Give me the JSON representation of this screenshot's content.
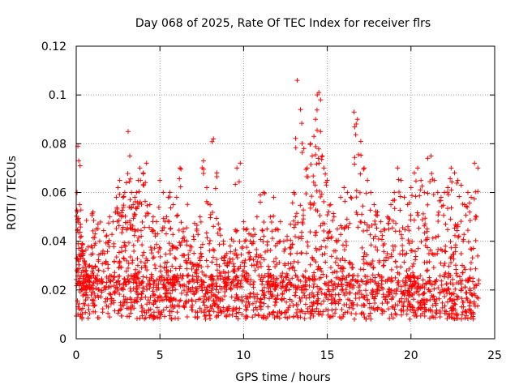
{
  "chart_data": {
    "type": "scatter",
    "title": "Day 068 of 2025, Rate Of TEC Index for receiver flrs",
    "xlabel": "GPS time / hours",
    "ylabel": "ROTI / TECUs",
    "xlim": [
      0,
      25
    ],
    "ylim": [
      0,
      0.12
    ],
    "xticks": [
      0,
      5,
      10,
      15,
      20,
      25
    ],
    "xtick_labels": [
      "0",
      "5",
      "10",
      "15",
      "20",
      "25"
    ],
    "yticks": [
      0,
      0.02,
      0.04,
      0.06,
      0.08,
      0.1,
      0.12
    ],
    "ytick_labels": [
      "0",
      "0.02",
      "0.04",
      "0.06",
      "0.08",
      "0.1",
      "0.12"
    ],
    "grid": true,
    "marker": "+",
    "color": "#ff0000",
    "series": [
      {
        "name": "ROTI",
        "x": [
          0.05,
          0.1,
          0.15,
          0.2,
          0.25,
          0.3,
          0.35,
          0.4,
          0.5,
          0.6,
          0.7,
          0.8,
          0.9,
          1.0,
          1.2,
          1.4,
          1.6,
          1.8,
          2.0,
          2.2,
          2.4,
          2.5,
          2.6,
          2.7,
          2.8,
          2.9,
          3.0,
          3.1,
          3.2,
          3.3,
          3.4,
          3.5,
          3.6,
          3.7,
          3.8,
          4.0,
          4.2,
          4.4,
          4.6,
          4.8,
          5.0,
          5.2,
          5.4,
          5.5,
          5.6,
          5.8,
          6.0,
          6.2,
          6.4,
          6.6,
          6.8,
          7.0,
          7.2,
          7.4,
          7.6,
          7.8,
          8.0,
          8.2,
          8.4,
          8.6,
          8.8,
          9.0,
          9.2,
          9.4,
          9.6,
          9.8,
          10.0,
          10.2,
          10.4,
          10.6,
          10.8,
          11.0,
          11.2,
          11.4,
          11.6,
          11.8,
          12.0,
          12.2,
          12.4,
          12.6,
          12.8,
          13.0,
          13.2,
          13.4,
          13.6,
          13.8,
          14.0,
          14.1,
          14.2,
          14.3,
          14.4,
          14.5,
          14.6,
          14.7,
          14.8,
          15.0,
          15.2,
          15.4,
          15.6,
          15.8,
          16.0,
          16.2,
          16.4,
          16.6,
          16.8,
          17.0,
          17.2,
          17.4,
          17.6,
          17.8,
          18.0,
          18.2,
          18.4,
          18.6,
          18.8,
          19.0,
          19.2,
          19.4,
          19.6,
          19.8,
          20.0,
          20.2,
          20.4,
          20.6,
          20.8,
          21.0,
          21.2,
          21.4,
          21.6,
          21.8,
          22.0,
          22.2,
          22.4,
          22.6,
          22.8,
          23.0,
          23.2,
          23.4,
          23.6,
          23.8,
          24.0
        ],
        "y": [
          0.06,
          0.079,
          0.073,
          0.055,
          0.047,
          0.042,
          0.039,
          0.035,
          0.031,
          0.028,
          0.026,
          0.03,
          0.038,
          0.052,
          0.045,
          0.04,
          0.036,
          0.042,
          0.05,
          0.048,
          0.058,
          0.062,
          0.065,
          0.05,
          0.058,
          0.06,
          0.064,
          0.085,
          0.075,
          0.06,
          0.055,
          0.058,
          0.06,
          0.065,
          0.07,
          0.068,
          0.072,
          0.055,
          0.05,
          0.048,
          0.065,
          0.06,
          0.05,
          0.058,
          0.06,
          0.055,
          0.058,
          0.07,
          0.045,
          0.04,
          0.038,
          0.042,
          0.045,
          0.05,
          0.073,
          0.062,
          0.055,
          0.082,
          0.068,
          0.045,
          0.04,
          0.035,
          0.038,
          0.04,
          0.07,
          0.072,
          0.048,
          0.045,
          0.04,
          0.045,
          0.05,
          0.059,
          0.06,
          0.045,
          0.05,
          0.058,
          0.045,
          0.048,
          0.04,
          0.042,
          0.047,
          0.06,
          0.106,
          0.094,
          0.078,
          0.07,
          0.08,
          0.075,
          0.083,
          0.09,
          0.1,
          0.101,
          0.085,
          0.075,
          0.07,
          0.065,
          0.055,
          0.05,
          0.045,
          0.058,
          0.062,
          0.06,
          0.058,
          0.093,
          0.09,
          0.081,
          0.07,
          0.065,
          0.06,
          0.055,
          0.052,
          0.048,
          0.045,
          0.05,
          0.055,
          0.06,
          0.07,
          0.065,
          0.058,
          0.055,
          0.062,
          0.068,
          0.07,
          0.065,
          0.06,
          0.074,
          0.075,
          0.065,
          0.06,
          0.058,
          0.06,
          0.062,
          0.07,
          0.068,
          0.065,
          0.063,
          0.055,
          0.06,
          0.058,
          0.072,
          0.07
        ]
      }
    ]
  }
}
